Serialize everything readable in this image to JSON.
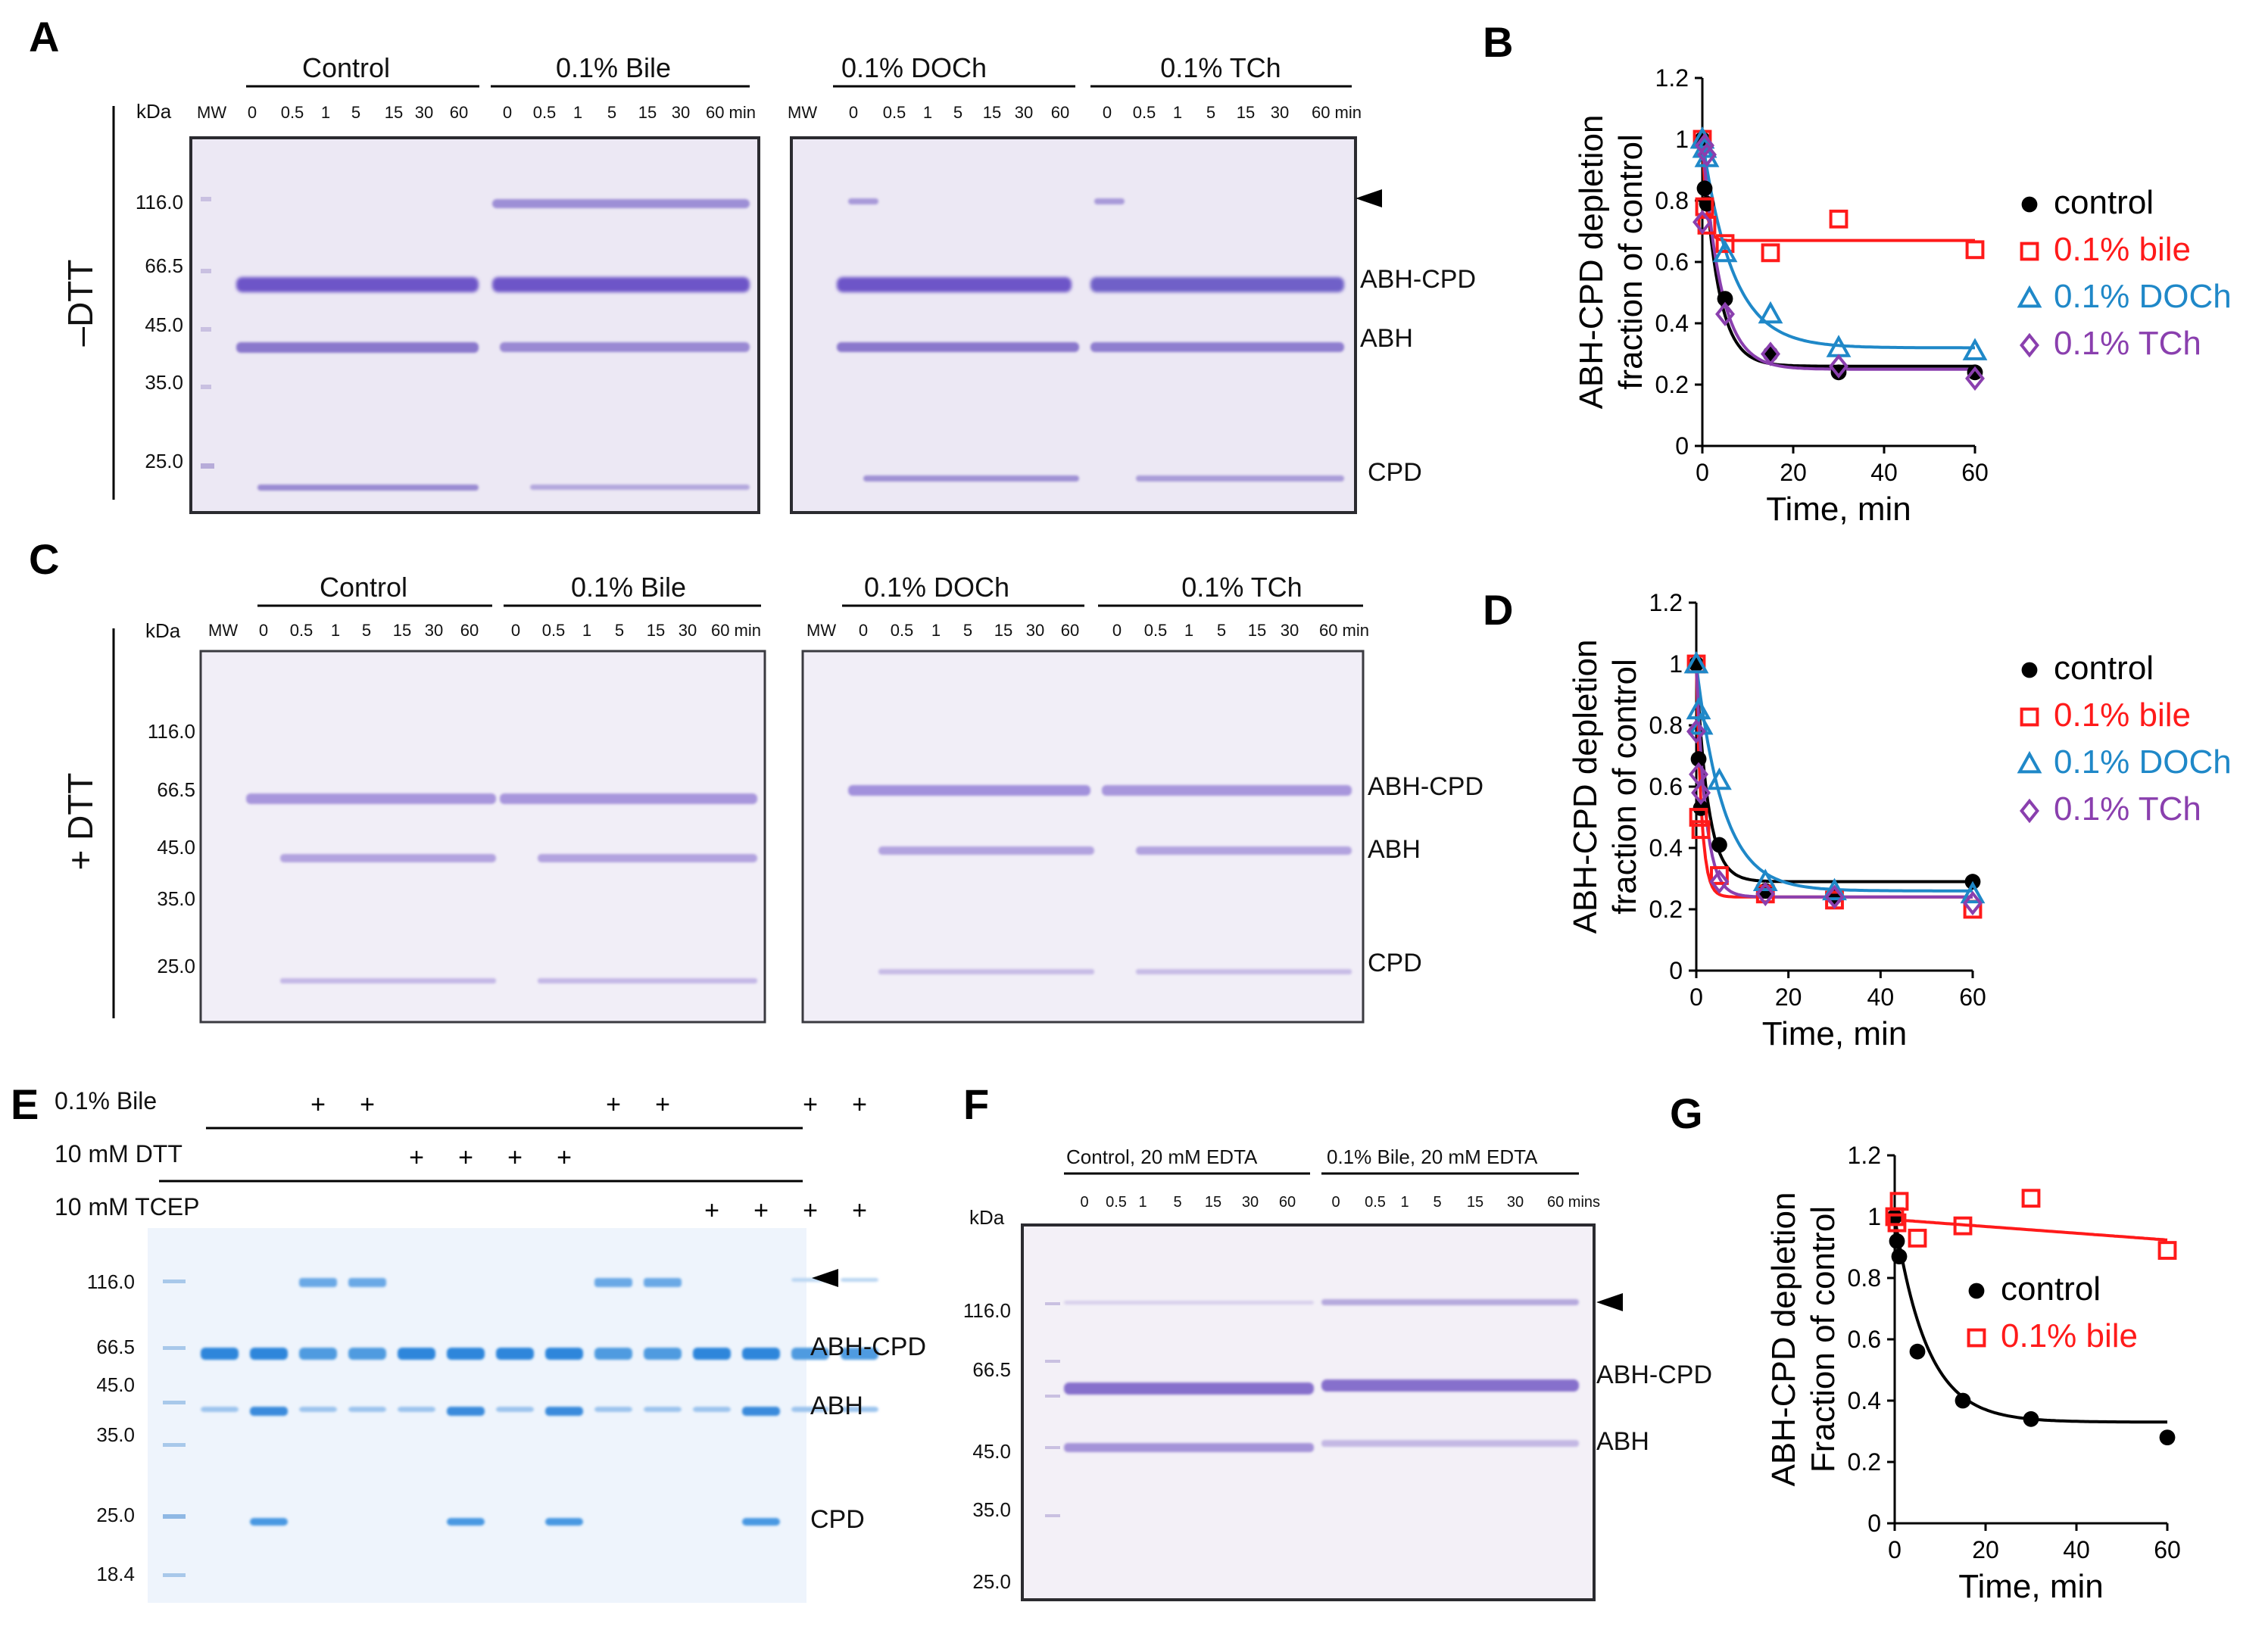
{
  "panels": {
    "A": {
      "label": "A",
      "condition": "–DTT",
      "kda": "kDa",
      "mw": "MW",
      "markers": [
        "116.0",
        "66.5",
        "45.0",
        "35.0",
        "25.0"
      ],
      "groups": [
        "Control",
        "0.1% Bile",
        "0.1% DOCh",
        "0.1% TCh"
      ],
      "times": [
        "0",
        "0.5",
        "1",
        "5",
        "15",
        "30",
        "60"
      ],
      "last_time": "60 min",
      "band_labels": [
        "ABH-CPD",
        "ABH",
        "CPD"
      ]
    },
    "C": {
      "label": "C",
      "condition": "+ DTT",
      "kda": "kDa",
      "mw": "MW",
      "markers": [
        "116.0",
        "66.5",
        "45.0",
        "35.0",
        "25.0"
      ],
      "groups": [
        "Control",
        "0.1% Bile",
        "0.1% DOCh",
        "0.1% TCh"
      ],
      "times": [
        "0",
        "0.5",
        "1",
        "5",
        "15",
        "30",
        "60"
      ],
      "last_time": "60 min",
      "band_labels": [
        "ABH-CPD",
        "ABH",
        "CPD"
      ]
    },
    "E": {
      "label": "E",
      "rows": [
        {
          "name": "0.1% Bile",
          "marks": [
            0,
            0,
            1,
            1,
            0,
            0,
            0,
            0,
            1,
            1,
            0,
            0,
            1,
            1
          ]
        },
        {
          "name": "10 mM DTT",
          "marks": [
            0,
            0,
            0,
            0,
            1,
            1,
            1,
            1,
            0,
            0,
            0,
            0,
            0,
            0
          ]
        },
        {
          "name": "10 mM TCEP",
          "marks": [
            0,
            0,
            0,
            0,
            0,
            0,
            0,
            0,
            0,
            0,
            1,
            1,
            1,
            1
          ]
        }
      ],
      "plus": "+",
      "markers": [
        "116.0",
        "66.5",
        "45.0",
        "35.0",
        "25.0",
        "18.4"
      ],
      "band_labels": [
        "ABH-CPD",
        "ABH",
        "CPD"
      ]
    },
    "F": {
      "label": "F",
      "kda": "kDa",
      "groups": [
        "Control, 20 mM EDTA",
        "0.1% Bile, 20 mM EDTA"
      ],
      "times": [
        "0",
        "0.5",
        "1",
        "5",
        "15",
        "30",
        "60"
      ],
      "last_time": "60 mins",
      "markers": [
        "116.0",
        "66.5",
        "45.0",
        "35.0",
        "25.0"
      ],
      "band_labels": [
        "ABH-CPD",
        "ABH"
      ]
    }
  },
  "chart_data": [
    {
      "panel": "B",
      "type": "scatter",
      "title": "",
      "xlabel": "Time, min",
      "ylabel": "ABH-CPD depletion\nfraction of control",
      "xlim": [
        0,
        60
      ],
      "ylim": [
        0,
        1.2
      ],
      "xticks": [
        0,
        20,
        40,
        60
      ],
      "yticks": [
        0,
        0.2,
        0.4,
        0.6,
        0.8,
        1,
        1.2
      ],
      "legend_position": "right",
      "series": [
        {
          "name": "control",
          "marker": "circle",
          "color": "#000000",
          "x": [
            0,
            0.5,
            1,
            5,
            15,
            30,
            60
          ],
          "y": [
            1.0,
            0.84,
            0.79,
            0.48,
            0.3,
            0.24,
            0.24
          ],
          "fit": {
            "plateau": 0.26,
            "k": 0.3
          }
        },
        {
          "name": "0.1% bile",
          "marker": "square",
          "color": "#ff1a1a",
          "x": [
            0,
            0.5,
            1,
            5,
            15,
            30,
            60
          ],
          "y": [
            1.0,
            0.78,
            0.72,
            0.66,
            0.63,
            0.74,
            0.64
          ],
          "fit": {
            "plateau": 0.67,
            "k": 1.2
          }
        },
        {
          "name": "0.1% DOCh",
          "marker": "triangle",
          "color": "#1f88c8",
          "x": [
            0,
            0.5,
            1,
            5,
            15,
            30,
            60
          ],
          "y": [
            1.0,
            0.97,
            0.94,
            0.63,
            0.43,
            0.32,
            0.31
          ],
          "fit": {
            "plateau": 0.32,
            "k": 0.15
          }
        },
        {
          "name": "0.1% TCh",
          "marker": "diamond",
          "color": "#8a3fae",
          "x": [
            0,
            0.5,
            1,
            5,
            15,
            30,
            60
          ],
          "y": [
            0.73,
            0.98,
            0.95,
            0.43,
            0.3,
            0.26,
            0.22
          ],
          "fit": {
            "plateau": 0.25,
            "k": 0.25
          }
        }
      ]
    },
    {
      "panel": "D",
      "type": "scatter",
      "title": "",
      "xlabel": "Time, min",
      "ylabel": "ABH-CPD depletion\nfraction of control",
      "xlim": [
        0,
        60
      ],
      "ylim": [
        0,
        1.2
      ],
      "xticks": [
        0,
        20,
        40,
        60
      ],
      "yticks": [
        0,
        0.2,
        0.4,
        0.6,
        0.8,
        1,
        1.2
      ],
      "legend_position": "right",
      "series": [
        {
          "name": "control",
          "marker": "circle",
          "color": "#000000",
          "x": [
            0,
            0.5,
            1,
            5,
            15,
            30,
            60
          ],
          "y": [
            1.0,
            0.69,
            0.53,
            0.41,
            0.26,
            0.24,
            0.29
          ],
          "fit": {
            "plateau": 0.29,
            "k": 0.4
          }
        },
        {
          "name": "0.1% bile",
          "marker": "square",
          "color": "#ff1a1a",
          "x": [
            0,
            0.5,
            1,
            5,
            15,
            30,
            60
          ],
          "y": [
            1.0,
            0.5,
            0.46,
            0.31,
            0.25,
            0.23,
            0.2
          ],
          "fit": {
            "plateau": 0.24,
            "k": 0.9
          }
        },
        {
          "name": "0.1% DOCh",
          "marker": "triangle",
          "color": "#1f88c8",
          "x": [
            0,
            0.5,
            1,
            5,
            15,
            30,
            60
          ],
          "y": [
            1.0,
            0.85,
            0.8,
            0.62,
            0.29,
            0.26,
            0.25
          ],
          "fit": {
            "plateau": 0.26,
            "k": 0.17
          }
        },
        {
          "name": "0.1% TCh",
          "marker": "diamond",
          "color": "#8a3fae",
          "x": [
            0,
            0.5,
            1,
            5,
            15,
            30,
            60
          ],
          "y": [
            0.78,
            0.64,
            0.58,
            0.29,
            0.25,
            0.24,
            0.22
          ],
          "fit": {
            "plateau": 0.24,
            "k": 0.5
          }
        }
      ]
    },
    {
      "panel": "G",
      "type": "scatter",
      "title": "",
      "xlabel": "Time, min",
      "ylabel": "ABH-CPD depletion\nFraction of control",
      "xlim": [
        0,
        60
      ],
      "ylim": [
        0,
        1.2
      ],
      "xticks": [
        0,
        20,
        40,
        60
      ],
      "yticks": [
        0,
        0.2,
        0.4,
        0.6,
        0.8,
        1,
        1.2
      ],
      "legend_position": "center",
      "series": [
        {
          "name": "control",
          "marker": "circle",
          "color": "#000000",
          "x": [
            0,
            0.5,
            1,
            5,
            15,
            30,
            60
          ],
          "y": [
            1.0,
            0.92,
            0.87,
            0.56,
            0.4,
            0.34,
            0.28
          ],
          "fit": {
            "plateau": 0.33,
            "k": 0.14
          }
        },
        {
          "name": "0.1% bile",
          "marker": "square",
          "color": "#ff1a1a",
          "x": [
            0,
            0.5,
            1,
            5,
            15,
            30,
            60
          ],
          "y": [
            1.0,
            0.98,
            1.05,
            0.93,
            0.97,
            1.06,
            0.89
          ],
          "linear": {
            "a": 0.99,
            "b": -0.0011
          }
        }
      ]
    }
  ]
}
